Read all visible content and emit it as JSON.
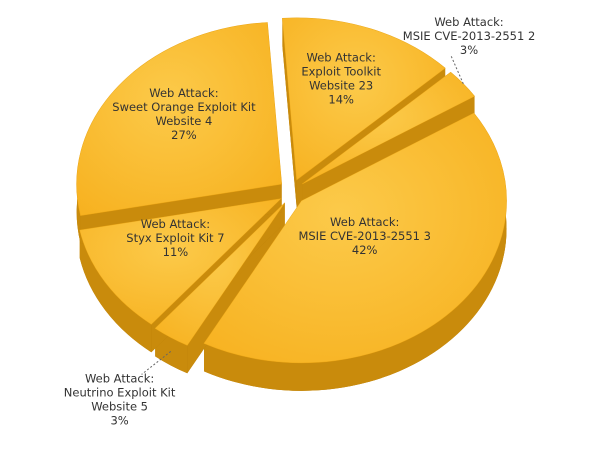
{
  "chart_data": {
    "type": "pie",
    "three_d": true,
    "exploded": true,
    "color": "#f9b724",
    "labels": [
      [
        "Web Attack:",
        "Exploit  Toolkit",
        "Website 23"
      ],
      [
        "Web Attack:",
        "MSIE CVE-2013-2551  2"
      ],
      [
        "Web Attack:",
        "MSIE CVE-2013-2551  3"
      ],
      [
        "Web Attack:",
        "Neutrino  Exploit  Kit",
        "Website 5"
      ],
      [
        "Web Attack:",
        "Styx Exploit  Kit 7"
      ],
      [
        "Web Attack:",
        "Sweet Orange Exploit  Kit",
        "Website 4"
      ]
    ],
    "values": [
      14,
      3,
      42,
      3,
      11,
      27
    ],
    "value_labels": [
      "14%",
      "3%",
      "42%",
      "3%",
      "11%",
      "27%"
    ]
  }
}
